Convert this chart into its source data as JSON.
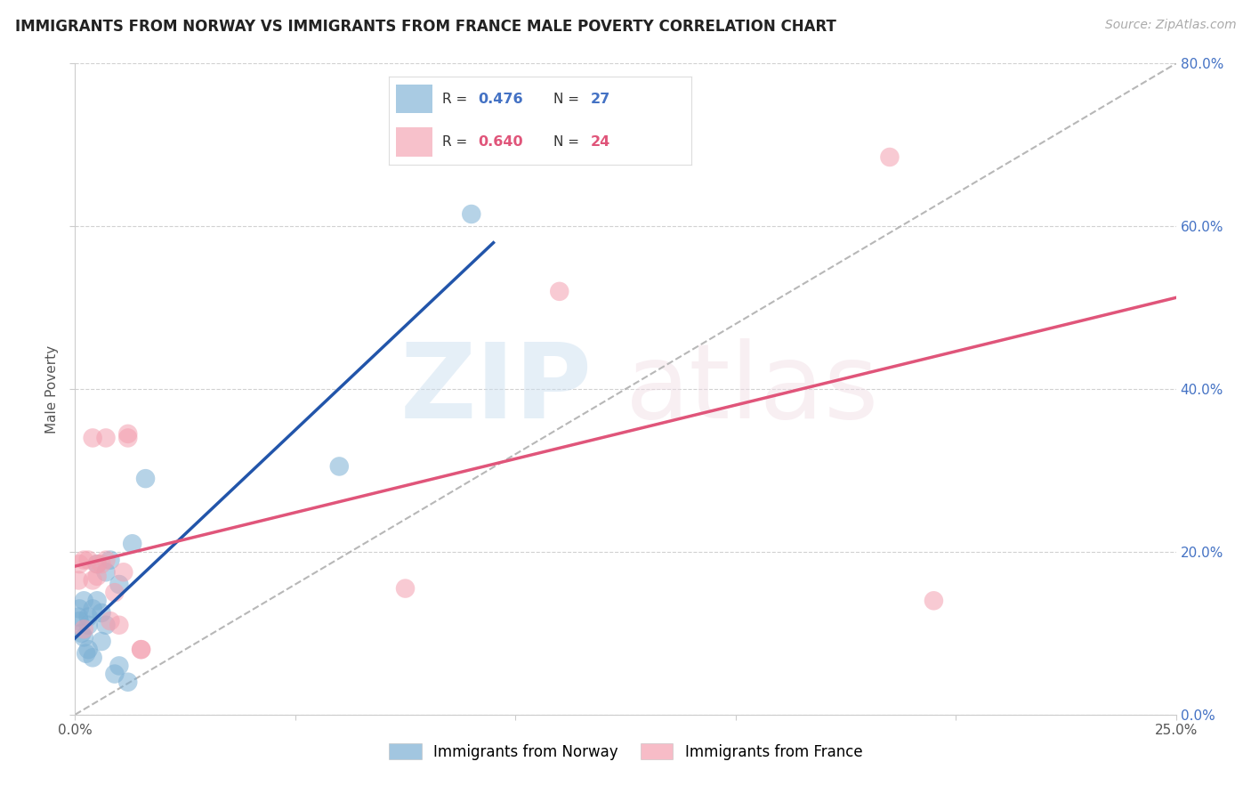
{
  "title": "IMMIGRANTS FROM NORWAY VS IMMIGRANTS FROM FRANCE MALE POVERTY CORRELATION CHART",
  "source": "Source: ZipAtlas.com",
  "ylabel": "Male Poverty",
  "legend_norway": "Immigrants from Norway",
  "legend_france": "Immigrants from France",
  "r_norway": "0.476",
  "n_norway": "27",
  "r_france": "0.640",
  "n_france": "24",
  "xlim": [
    0.0,
    0.25
  ],
  "ylim": [
    0.0,
    0.8
  ],
  "xticks": [
    0.0,
    0.05,
    0.1,
    0.15,
    0.2,
    0.25
  ],
  "xticklabels": [
    "0.0%",
    "",
    "",
    "",
    "",
    "25.0%"
  ],
  "yticks": [
    0.0,
    0.2,
    0.4,
    0.6,
    0.8
  ],
  "yticklabels_right": [
    "0.0%",
    "20.0%",
    "40.0%",
    "60.0%",
    "80.0%"
  ],
  "norway_color": "#7bafd4",
  "france_color": "#f4a0b0",
  "norway_line_color": "#2255aa",
  "france_line_color": "#e0557a",
  "background_color": "#ffffff",
  "norway_x": [
    0.0008,
    0.001,
    0.001,
    0.0015,
    0.002,
    0.002,
    0.0025,
    0.003,
    0.003,
    0.003,
    0.004,
    0.004,
    0.005,
    0.005,
    0.006,
    0.006,
    0.007,
    0.007,
    0.008,
    0.009,
    0.01,
    0.01,
    0.012,
    0.013,
    0.016,
    0.06,
    0.09
  ],
  "norway_y": [
    0.12,
    0.115,
    0.13,
    0.1,
    0.095,
    0.14,
    0.075,
    0.11,
    0.12,
    0.08,
    0.13,
    0.07,
    0.14,
    0.185,
    0.09,
    0.125,
    0.175,
    0.11,
    0.19,
    0.05,
    0.16,
    0.06,
    0.04,
    0.21,
    0.29,
    0.305,
    0.615
  ],
  "france_x": [
    0.0008,
    0.001,
    0.002,
    0.002,
    0.003,
    0.004,
    0.004,
    0.005,
    0.005,
    0.006,
    0.007,
    0.007,
    0.008,
    0.009,
    0.01,
    0.011,
    0.012,
    0.012,
    0.015,
    0.015,
    0.075,
    0.11,
    0.185,
    0.195
  ],
  "france_y": [
    0.165,
    0.185,
    0.105,
    0.19,
    0.19,
    0.165,
    0.34,
    0.17,
    0.185,
    0.185,
    0.19,
    0.34,
    0.115,
    0.15,
    0.11,
    0.175,
    0.34,
    0.345,
    0.08,
    0.08,
    0.155,
    0.52,
    0.685,
    0.14
  ],
  "norway_line_x0": -0.003,
  "norway_line_x1": 0.095,
  "france_line_x0": -0.003,
  "france_line_x1": 0.25
}
